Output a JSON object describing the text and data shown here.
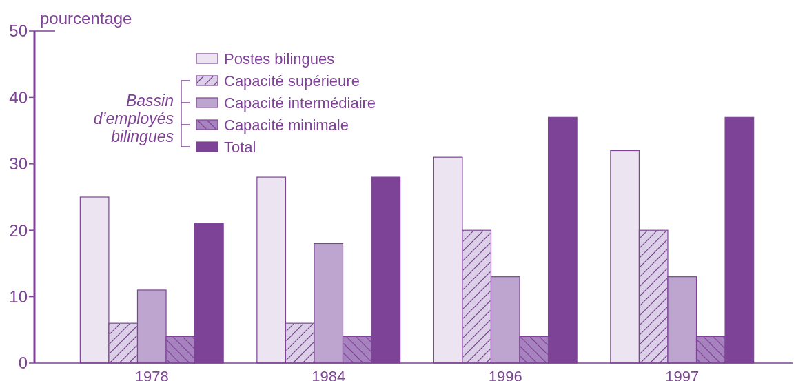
{
  "chart_data": {
    "type": "bar",
    "ylabel": "pourcentage",
    "categories": [
      "1978",
      "1984",
      "1996",
      "1997"
    ],
    "series": [
      {
        "name": "Postes bilingues",
        "color": "#ede4f2",
        "values": [
          25,
          28,
          31,
          32
        ]
      },
      {
        "name": "Capacité supérieure",
        "color": "#dcd0e8",
        "values": [
          6,
          6,
          20,
          20
        ]
      },
      {
        "name": "Capacité intermédiaire",
        "color": "#bea5cf",
        "values": [
          11,
          18,
          13,
          13
        ]
      },
      {
        "name": "Capacité minimale",
        "color": "#a682bf",
        "values": [
          4,
          4,
          4,
          4
        ]
      },
      {
        "name": "Total",
        "color": "#7d4396",
        "values": [
          21,
          28,
          37,
          37
        ]
      }
    ],
    "ylim": [
      0,
      50
    ],
    "yticks": [
      0,
      10,
      20,
      30,
      40,
      50
    ],
    "legend": "top left",
    "annotations": [
      "Bassin d’employés bilingues"
    ]
  }
}
